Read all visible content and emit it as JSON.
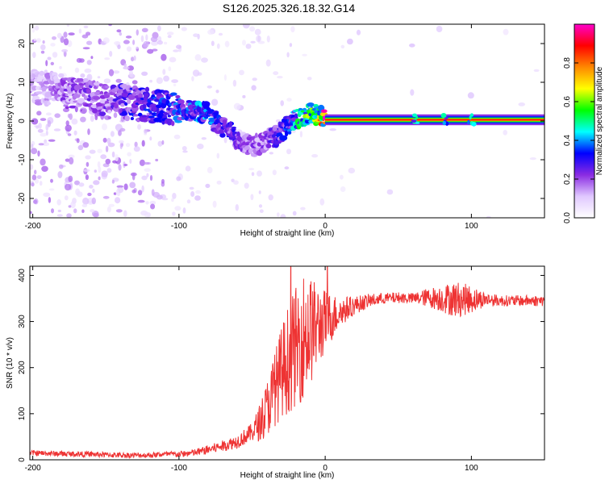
{
  "figure": {
    "title": "S126.2025.326.18.32.G14"
  },
  "chart_data": [
    {
      "type": "heatmap",
      "xlabel": "Height of straight line (km)",
      "ylabel": "Frequency (Hz)",
      "xlim": [
        -202,
        150
      ],
      "ylim": [
        -25,
        25
      ],
      "xticks": [
        -200,
        -100,
        0,
        100
      ],
      "yticks": [
        -20,
        -10,
        0,
        10,
        20
      ],
      "colorbar": {
        "label": "Normalized spectral amplitude",
        "range": [
          0,
          1
        ],
        "ticks": [
          0.0,
          0.2,
          0.4,
          0.6,
          0.8
        ],
        "colors": [
          "#ffffff",
          "#e0c8ff",
          "#8a2be2",
          "#0000ff",
          "#00ffff",
          "#00ff00",
          "#ffff00",
          "#ff8800",
          "#ff0000",
          "#ff00cc"
        ]
      },
      "ridge": {
        "x": [
          -200,
          -190,
          -180,
          -170,
          -160,
          -150,
          -140,
          -130,
          -120,
          -110,
          -100,
          -90,
          -80,
          -75,
          -70,
          -65,
          -60,
          -55,
          -50,
          -45,
          -40,
          -35,
          -30,
          -25,
          -20,
          -15,
          -10,
          -5,
          0,
          10,
          20,
          40,
          60,
          80,
          100,
          120,
          150
        ],
        "y": [
          9,
          8.5,
          8,
          7,
          6,
          5,
          5,
          4.5,
          4,
          3.5,
          3,
          2.5,
          2,
          0,
          -1.5,
          -3,
          -5,
          -6,
          -6.5,
          -6,
          -5,
          -4,
          -3,
          -1,
          0.5,
          1.5,
          2,
          1.5,
          0.5,
          0.3,
          0.3,
          0.3,
          0.3,
          0.3,
          0.3,
          0.3,
          0.3
        ],
        "amplitude": [
          0.15,
          0.15,
          0.2,
          0.2,
          0.22,
          0.22,
          0.25,
          0.3,
          0.3,
          0.32,
          0.35,
          0.35,
          0.4,
          0.3,
          0.3,
          0.28,
          0.25,
          0.2,
          0.2,
          0.2,
          0.2,
          0.25,
          0.3,
          0.35,
          0.45,
          0.5,
          0.55,
          0.6,
          0.9,
          0.9,
          0.9,
          0.9,
          0.9,
          0.9,
          0.9,
          0.9,
          0.9
        ]
      }
    },
    {
      "type": "line",
      "xlabel": "Height of straight line (km)",
      "ylabel": "SNR (10 * v/v)",
      "xlim": [
        -202,
        150
      ],
      "ylim": [
        0,
        420
      ],
      "xticks": [
        -200,
        -100,
        0,
        100
      ],
      "yticks": [
        0,
        100,
        200,
        300,
        400
      ],
      "series": [
        {
          "color": "#ee3333",
          "x": [
            -202,
            -180,
            -160,
            -140,
            -120,
            -110,
            -100,
            -90,
            -80,
            -70,
            -60,
            -50,
            -45,
            -40,
            -35,
            -30,
            -25,
            -20,
            -15,
            -10,
            -5,
            0,
            5,
            10,
            20,
            30,
            40,
            50,
            60,
            70,
            80,
            90,
            100,
            110,
            120,
            130,
            140,
            150
          ],
          "y": [
            15,
            13,
            12,
            10,
            10,
            12,
            12,
            15,
            22,
            30,
            40,
            60,
            80,
            110,
            150,
            190,
            220,
            245,
            270,
            280,
            290,
            300,
            310,
            320,
            335,
            345,
            350,
            352,
            350,
            352,
            350,
            348,
            348,
            348,
            345,
            345,
            345,
            345
          ],
          "noise": [
            6,
            6,
            6,
            6,
            6,
            6,
            7,
            8,
            10,
            12,
            15,
            20,
            40,
            60,
            80,
            100,
            120,
            130,
            140,
            120,
            90,
            70,
            50,
            35,
            20,
            15,
            12,
            12,
            12,
            20,
            30,
            40,
            30,
            15,
            12,
            12,
            12,
            12
          ]
        }
      ]
    }
  ]
}
